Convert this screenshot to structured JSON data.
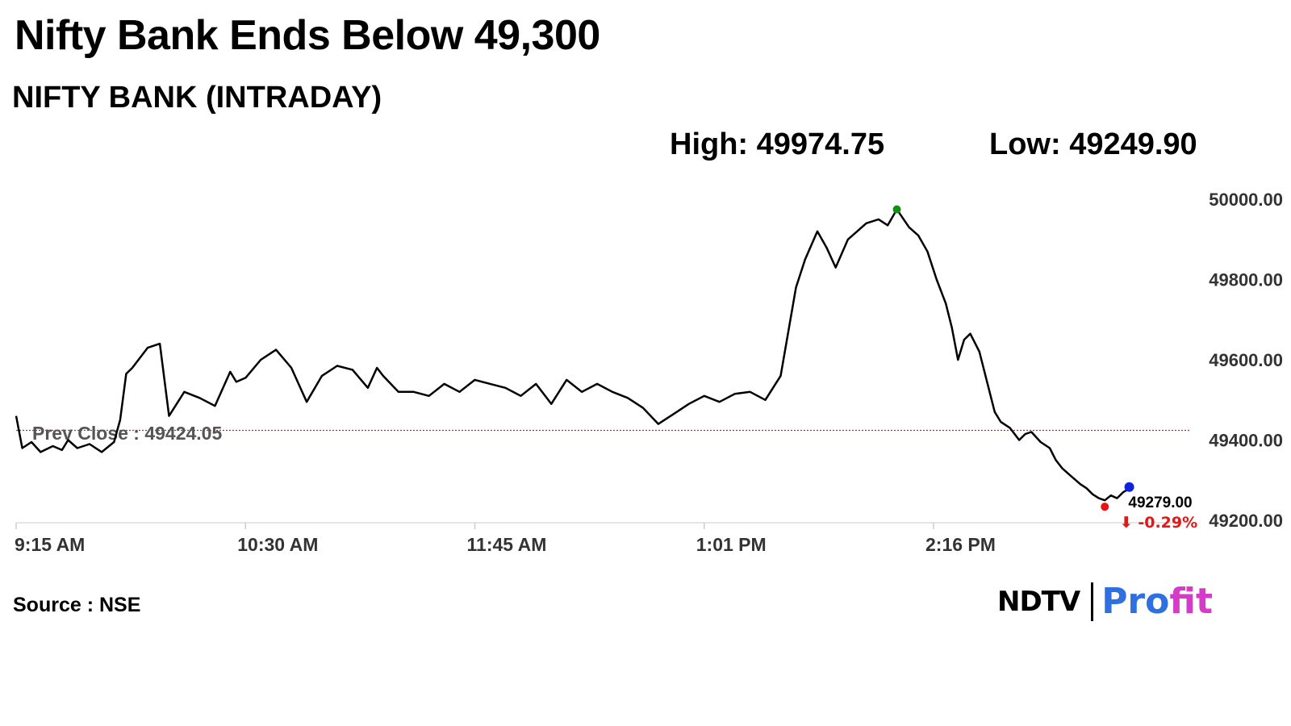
{
  "headline": "Nifty Bank Ends Below 49,300",
  "subtitle": "NIFTY BANK (INTRADAY)",
  "stats": {
    "high": "High: 49974.75",
    "low": "Low: 49249.90"
  },
  "source": {
    "label": "Source :",
    "value": "NSE"
  },
  "brand": {
    "ndtv": "NDTV",
    "profit_a": "Pro",
    "profit_b": "fit"
  },
  "colors": {
    "line": "#000000",
    "prev_close": "#cc2222",
    "high_marker": "#109010",
    "low_marker": "#ee1111",
    "last_marker": "#1122dd",
    "negative": "#e01818",
    "profit_blue": "#2f6fe0",
    "profit_pink": "#d63ac8"
  },
  "chart_data": {
    "type": "line",
    "title": "NIFTY BANK (INTRADAY)",
    "x_ticks": [
      "9:15 AM",
      "10:30 AM",
      "11:45 AM",
      "1:01 PM",
      "2:16 PM"
    ],
    "y_ticks": [
      "50000.00",
      "49800.00",
      "49600.00",
      "49400.00",
      "49200.00"
    ],
    "ylim": [
      49200,
      50000
    ],
    "prev_close": {
      "label": "Prev Close : 49424.05",
      "value": 49424.05
    },
    "last": {
      "value_label": "49279.00",
      "change_label": "⬇ -0.29%",
      "value": 49279.0
    },
    "high": 49974.75,
    "low": 49249.9,
    "x_minutes": [
      0,
      2,
      5,
      8,
      12,
      15,
      17,
      20,
      24,
      28,
      32,
      34,
      36,
      38,
      40,
      43,
      47,
      50,
      55,
      60,
      65,
      70,
      72,
      75,
      80,
      85,
      90,
      95,
      100,
      105,
      110,
      115,
      118,
      120,
      125,
      130,
      135,
      140,
      145,
      150,
      155,
      160,
      165,
      170,
      175,
      180,
      185,
      190,
      195,
      200,
      205,
      210,
      215,
      220,
      225,
      230,
      235,
      240,
      245,
      250,
      255,
      258,
      262,
      265,
      268,
      272,
      275,
      278,
      282,
      285,
      288,
      292,
      295,
      298,
      301,
      304,
      306,
      308,
      310,
      312,
      315,
      317,
      320,
      322,
      325,
      328,
      330,
      332,
      335,
      338,
      340,
      342,
      345,
      348,
      350,
      352,
      354,
      356,
      358,
      360,
      362,
      364
    ],
    "values": [
      49460,
      49380,
      49395,
      49370,
      49385,
      49375,
      49400,
      49380,
      49390,
      49370,
      49395,
      49450,
      49565,
      49580,
      49600,
      49630,
      49640,
      49460,
      49520,
      49505,
      49485,
      49570,
      49545,
      49555,
      49600,
      49625,
      49580,
      49495,
      49560,
      49585,
      49575,
      49530,
      49580,
      49560,
      49520,
      49520,
      49510,
      49540,
      49520,
      49550,
      49540,
      49530,
      49510,
      49540,
      49490,
      49550,
      49520,
      49540,
      49520,
      49505,
      49480,
      49440,
      49465,
      49490,
      49510,
      49495,
      49515,
      49520,
      49500,
      49560,
      49780,
      49850,
      49920,
      49880,
      49830,
      49900,
      49920,
      49940,
      49950,
      49935,
      49974.75,
      49930,
      49910,
      49870,
      49800,
      49740,
      49680,
      49600,
      49650,
      49665,
      49620,
      49560,
      49470,
      49445,
      49430,
      49400,
      49415,
      49420,
      49395,
      49380,
      49350,
      49330,
      49310,
      49290,
      49280,
      49265,
      49255,
      49249.9,
      49262,
      49255,
      49270,
      49279
    ]
  }
}
